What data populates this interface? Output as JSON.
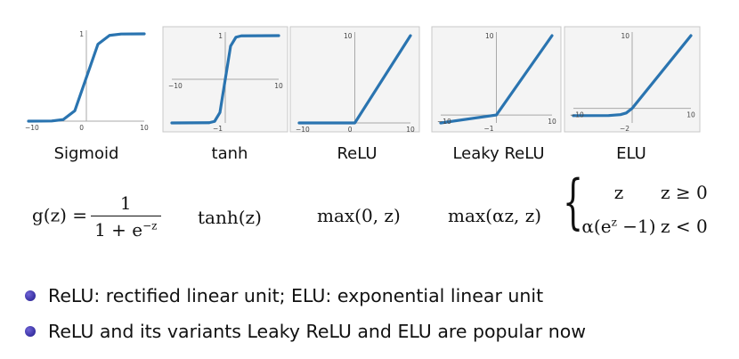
{
  "chart_data": [
    {
      "type": "line",
      "function": "sigmoid",
      "name": "Sigmoid",
      "formula_parts": {
        "lhs": "g(z) =",
        "num": "1",
        "den_base": "1 + e",
        "den_exp": "−z"
      },
      "xlim": [
        -10,
        10
      ],
      "ylim": [
        0,
        1
      ],
      "x_ticks": [
        "−10",
        "0",
        "10"
      ],
      "y_ticks": [
        "1"
      ],
      "x": [
        -10,
        -6,
        -4,
        -2,
        0,
        2,
        4,
        6,
        10
      ],
      "y": [
        0,
        0.002,
        0.018,
        0.119,
        0.5,
        0.881,
        0.982,
        0.998,
        1
      ],
      "color": "#2a74b0"
    },
    {
      "type": "line",
      "function": "tanh",
      "name": "tanh",
      "formula": "tanh(z)",
      "xlim": [
        -10,
        10
      ],
      "ylim": [
        -1,
        1
      ],
      "x_ticks": [
        "−10",
        "10"
      ],
      "y_ticks": [
        "1",
        "−1"
      ],
      "x": [
        -10,
        -3,
        -2,
        -1,
        0,
        1,
        2,
        3,
        10
      ],
      "y": [
        -1,
        -0.995,
        -0.964,
        -0.762,
        0,
        0.762,
        0.964,
        0.995,
        1
      ],
      "color": "#2a74b0"
    },
    {
      "type": "line",
      "function": "relu",
      "name": "ReLU",
      "formula": "max(0, z)",
      "xlim": [
        -10,
        10
      ],
      "ylim": [
        0,
        10
      ],
      "x_ticks": [
        "−10",
        "0",
        "10"
      ],
      "y_ticks": [
        "10"
      ],
      "x": [
        -10,
        0,
        10
      ],
      "y": [
        0,
        0,
        10
      ],
      "color": "#2a74b0"
    },
    {
      "type": "line",
      "function": "leaky_relu",
      "name": "Leaky ReLU",
      "formula": "max(αz, z)",
      "xlim": [
        -10,
        10
      ],
      "ylim": [
        -1,
        10
      ],
      "x_ticks": [
        "−10",
        "10"
      ],
      "y_ticks": [
        "10",
        "−1"
      ],
      "x": [
        -10,
        0,
        10
      ],
      "y": [
        -1,
        0,
        10
      ],
      "color": "#2a74b0"
    },
    {
      "type": "line",
      "function": "elu",
      "name": "ELU",
      "formula_cases": [
        {
          "value": "z",
          "condition": "z ≥ 0"
        },
        {
          "value_prefix": "α(e",
          "value_exp": "z",
          "value_suffix": " −1)",
          "condition": "z < 0"
        }
      ],
      "xlim": [
        -10,
        10
      ],
      "ylim": [
        -2,
        10
      ],
      "x_ticks": [
        "−10",
        "10"
      ],
      "y_ticks": [
        "10",
        "−2"
      ],
      "x": [
        -10,
        -4,
        -2,
        -1,
        0,
        10
      ],
      "y": [
        -1,
        -0.98,
        -0.86,
        -0.63,
        0,
        10
      ],
      "color": "#2a74b0"
    }
  ],
  "bullets": [
    "ReLU: rectified linear unit; ELU: exponential linear unit",
    "ReLU and its variants Leaky ReLU and ELU are popular now"
  ]
}
